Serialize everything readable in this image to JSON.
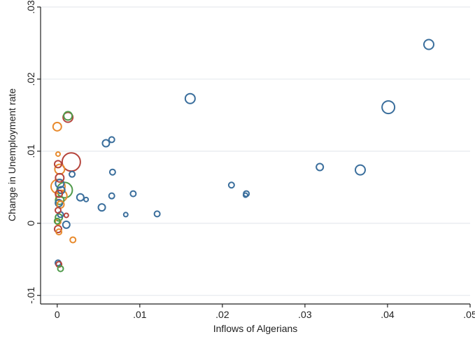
{
  "chart_data": {
    "type": "scatter",
    "xlabel": "Inflows of Algerians",
    "ylabel": "Change in Unemployment rate",
    "xlim": [
      -0.001,
      0.05
    ],
    "ylim": [
      -0.011,
      0.03
    ],
    "x_ticks": [
      0,
      0.01,
      0.02,
      0.03,
      0.04,
      0.05
    ],
    "x_tick_labels": [
      "0",
      ".01",
      ".02",
      ".03",
      ".04",
      ".05"
    ],
    "y_ticks": [
      -0.01,
      0,
      0.01,
      0.02,
      0.03
    ],
    "y_tick_labels": [
      "-.01",
      "0",
      ".01",
      ".02",
      ".03"
    ],
    "grid": "horizontal",
    "colors": {
      "blue": "#3a6e9c",
      "red": "#b5443c",
      "orange": "#e88b2e",
      "green": "#4f9a4a"
    },
    "points": [
      {
        "x": 0.045,
        "y": 0.0248,
        "size": 7,
        "color": "blue"
      },
      {
        "x": 0.0401,
        "y": 0.0161,
        "size": 9,
        "color": "blue"
      },
      {
        "x": 0.0161,
        "y": 0.0173,
        "size": 7,
        "color": "blue"
      },
      {
        "x": 0.0367,
        "y": 0.0074,
        "size": 7,
        "color": "blue"
      },
      {
        "x": 0.0318,
        "y": 0.0078,
        "size": 5,
        "color": "blue"
      },
      {
        "x": 0.0211,
        "y": 0.0053,
        "size": 4,
        "color": "blue"
      },
      {
        "x": 0.0229,
        "y": 0.0041,
        "size": 4,
        "color": "blue"
      },
      {
        "x": 0.0228,
        "y": 0.0039,
        "size": 3,
        "color": "blue"
      },
      {
        "x": 0.0121,
        "y": 0.0013,
        "size": 4,
        "color": "blue"
      },
      {
        "x": 0.0092,
        "y": 0.0041,
        "size": 4,
        "color": "blue"
      },
      {
        "x": 0.0083,
        "y": 0.0012,
        "size": 3,
        "color": "blue"
      },
      {
        "x": 0.0066,
        "y": 0.0116,
        "size": 4,
        "color": "blue"
      },
      {
        "x": 0.0059,
        "y": 0.0111,
        "size": 5,
        "color": "blue"
      },
      {
        "x": 0.0067,
        "y": 0.0071,
        "size": 4,
        "color": "blue"
      },
      {
        "x": 0.0066,
        "y": 0.0038,
        "size": 4,
        "color": "blue"
      },
      {
        "x": 0.0054,
        "y": 0.0022,
        "size": 5,
        "color": "blue"
      },
      {
        "x": 0.0028,
        "y": 0.0036,
        "size": 5,
        "color": "blue"
      },
      {
        "x": 0.0035,
        "y": 0.0033,
        "size": 3,
        "color": "blue"
      },
      {
        "x": 0.0018,
        "y": 0.0068,
        "size": 4,
        "color": "blue"
      },
      {
        "x": 0.0011,
        "y": -0.0002,
        "size": 5,
        "color": "blue"
      },
      {
        "x": 0.0003,
        "y": 0.0055,
        "size": 6,
        "color": "blue"
      },
      {
        "x": 0.0005,
        "y": 0.0046,
        "size": 5,
        "color": "blue"
      },
      {
        "x": 0.0002,
        "y": 0.0028,
        "size": 5,
        "color": "blue"
      },
      {
        "x": 0.0004,
        "y": 0.0012,
        "size": 4,
        "color": "blue"
      },
      {
        "x": 0.0001,
        "y": -0.0055,
        "size": 4,
        "color": "blue"
      },
      {
        "x": 0.0013,
        "y": 0.0147,
        "size": 7,
        "color": "red"
      },
      {
        "x": 0.0017,
        "y": 0.0085,
        "size": 13,
        "color": "red"
      },
      {
        "x": 0.0003,
        "y": 0.0063,
        "size": 6,
        "color": "red"
      },
      {
        "x": 0.0001,
        "y": 0.0082,
        "size": 5,
        "color": "red"
      },
      {
        "x": 0.0002,
        "y": 0.0041,
        "size": 5,
        "color": "red"
      },
      {
        "x": 0.0001,
        "y": 0.0018,
        "size": 4,
        "color": "red"
      },
      {
        "x": 0.0011,
        "y": 0.0011,
        "size": 3,
        "color": "red"
      },
      {
        "x": 0.0001,
        "y": -0.0008,
        "size": 5,
        "color": "red"
      },
      {
        "x": 0.0002,
        "y": -0.0057,
        "size": 4,
        "color": "red"
      },
      {
        "x": 0.0,
        "y": 0.0134,
        "size": 6,
        "color": "orange"
      },
      {
        "x": 0.0001,
        "y": 0.0096,
        "size": 3,
        "color": "orange"
      },
      {
        "x": 0.0003,
        "y": 0.0075,
        "size": 7,
        "color": "orange"
      },
      {
        "x": 0.0001,
        "y": 0.0051,
        "size": 10,
        "color": "orange"
      },
      {
        "x": 0.0005,
        "y": 0.0038,
        "size": 8,
        "color": "orange"
      },
      {
        "x": 0.0004,
        "y": 0.0026,
        "size": 5,
        "color": "orange"
      },
      {
        "x": 0.0001,
        "y": 0.0002,
        "size": 4,
        "color": "orange"
      },
      {
        "x": 0.0002,
        "y": -0.0012,
        "size": 4,
        "color": "orange"
      },
      {
        "x": 0.0019,
        "y": -0.0023,
        "size": 4,
        "color": "orange"
      },
      {
        "x": 0.0013,
        "y": 0.0149,
        "size": 6,
        "color": "green"
      },
      {
        "x": 0.0009,
        "y": 0.0046,
        "size": 11,
        "color": "green"
      },
      {
        "x": 0.0003,
        "y": 0.0032,
        "size": 6,
        "color": "green"
      },
      {
        "x": 0.0002,
        "y": 0.0008,
        "size": 5,
        "color": "green"
      },
      {
        "x": 0.0004,
        "y": -0.0063,
        "size": 4,
        "color": "green"
      },
      {
        "x": 0.0,
        "y": 0.0003,
        "size": 4,
        "color": "green"
      }
    ]
  }
}
